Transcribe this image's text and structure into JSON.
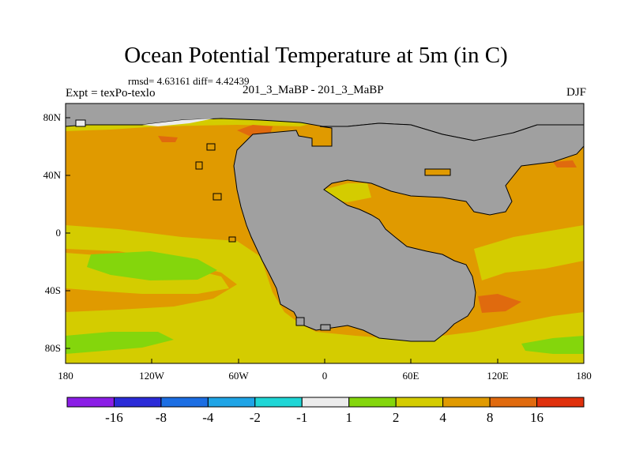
{
  "title": "Ocean Potential Temperature at 5m (in C)",
  "stats": "rmsd= 4.63161 diff= 4.42439",
  "experiment": "Expt = texPo-texlo",
  "runs": "201_3_MaBP - 201_3_MaBP",
  "season": "DJF",
  "axes": {
    "x_ticks": [
      "180",
      "120W",
      "60W",
      "0",
      "60E",
      "120E",
      "180"
    ],
    "y_ticks": [
      "80N",
      "40N",
      "0",
      "40S",
      "80S"
    ]
  },
  "colorbar": {
    "labels": [
      "-16",
      "-8",
      "-4",
      "-2",
      "-1",
      "1",
      "2",
      "4",
      "8",
      "16"
    ],
    "colors": [
      "#8b1ee6",
      "#2b2bd8",
      "#1c6ee3",
      "#1fa4e6",
      "#1fd6d6",
      "#ececec",
      "#84d60c",
      "#d4cc00",
      "#e09a00",
      "#e06a0e",
      "#e0300c"
    ]
  },
  "map_colors": {
    "land": "#a0a0a0",
    "ice_white": "#ececec",
    "band_1_2": "#84d60c",
    "band_2_4": "#d4cc00",
    "band_4_8": "#e09a00",
    "band_8_16": "#e06a0e"
  }
}
